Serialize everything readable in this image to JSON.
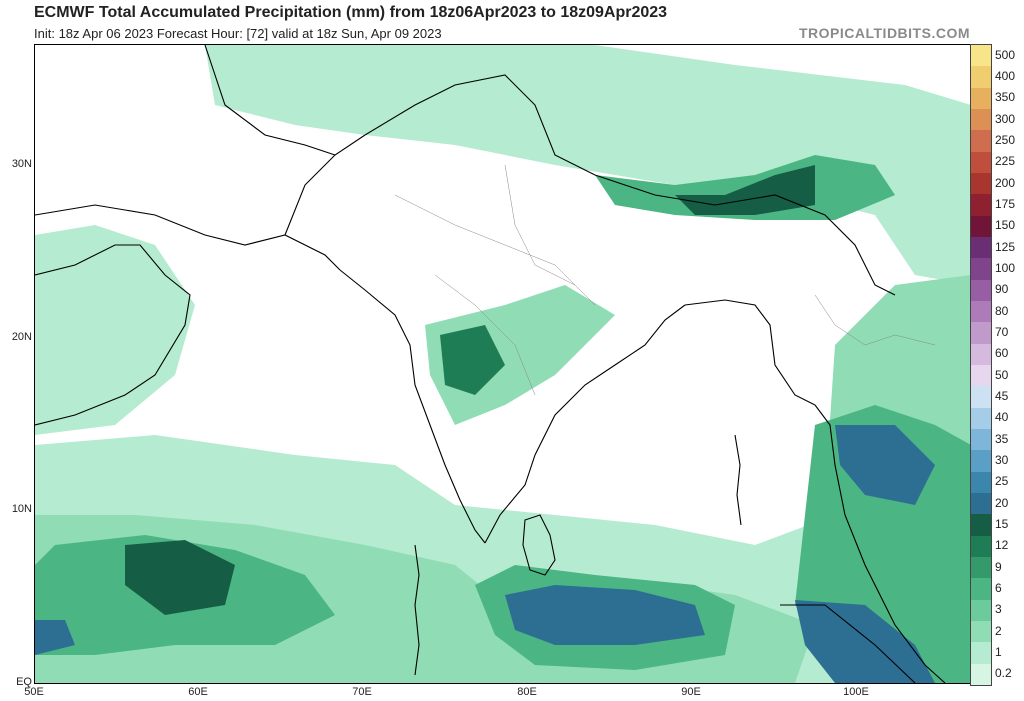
{
  "header": {
    "title": "ECMWF Total Accumulated Precipitation (mm) from 18z06Apr2023 to 18z09Apr2023",
    "subtitle": "Init: 18z Apr 06 2023   Forecast Hour: [72]   valid at 18z Sun, Apr 09 2023",
    "brand": "TROPICALTIDBITS.COM"
  },
  "map": {
    "lat_labels": [
      "30N",
      "20N",
      "10N",
      "EQ"
    ],
    "lon_labels": [
      "50E",
      "60E",
      "70E",
      "80E",
      "90E",
      "100E"
    ],
    "land_color": "#ffffff",
    "coast_color": "#000000"
  },
  "legend": {
    "levels": [
      "0.2",
      "1",
      "2",
      "3",
      "6",
      "9",
      "12",
      "15",
      "20",
      "25",
      "30",
      "35",
      "40",
      "45",
      "50",
      "60",
      "70",
      "80",
      "90",
      "100",
      "125",
      "150",
      "175",
      "200",
      "225",
      "250",
      "300",
      "350",
      "400",
      "500"
    ],
    "colors": [
      "#d6f5e3",
      "#b5ebd0",
      "#8fdcb5",
      "#6ccb9c",
      "#4cb584",
      "#349a6c",
      "#1f7d55",
      "#155e45",
      "#2d6f93",
      "#3b86ad",
      "#5a9fc6",
      "#7db6d9",
      "#a5cde8",
      "#cce2f2",
      "#e6d6ee",
      "#d5b9de",
      "#c19acc",
      "#ac7bb8",
      "#975ea3",
      "#80448c",
      "#6a2e74",
      "#701438",
      "#8e2030",
      "#a8352e",
      "#c04e3c",
      "#cf6e4e",
      "#dc9055",
      "#e6b05e",
      "#f0cd6e",
      "#f8e58a"
    ]
  }
}
